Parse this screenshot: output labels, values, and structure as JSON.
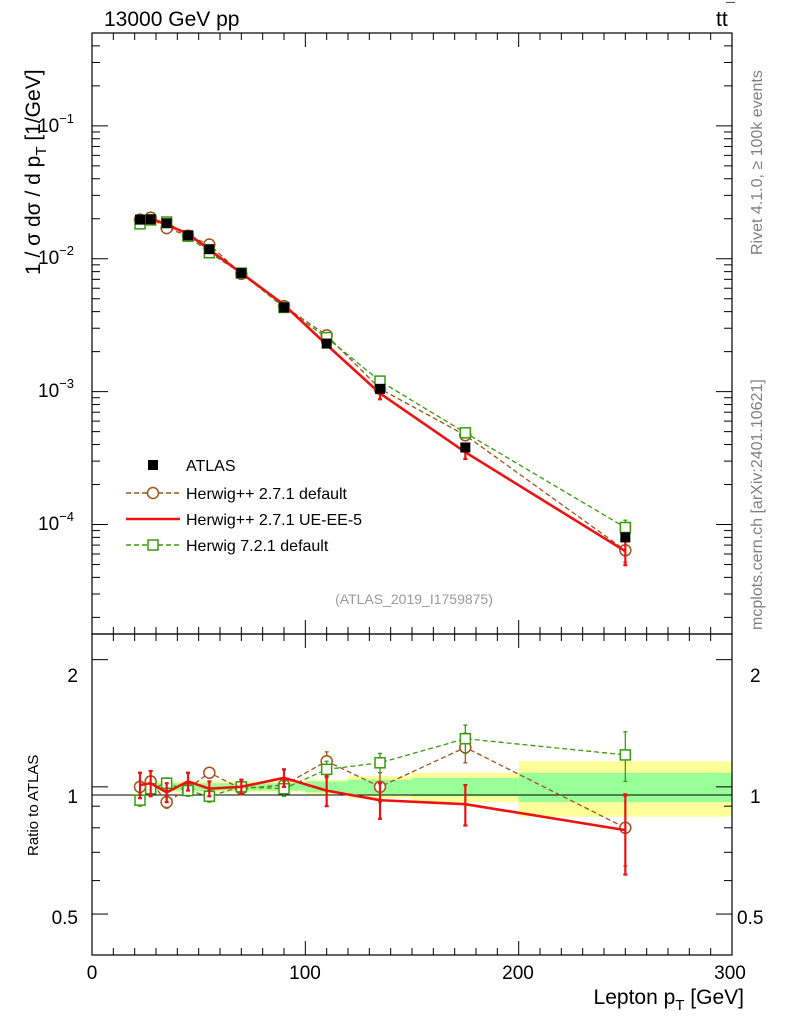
{
  "header": {
    "left": "13000 GeV pp",
    "right_base": "tt",
    "right_bar": "¯"
  },
  "side": {
    "rivet": "Rivet 4.1.0, ≥ 100k events",
    "mcplots": "mcplots.cern.ch [arXiv:2401.10621]"
  },
  "labels": {
    "ylabel_main_a": "1 / σ  dσ / d p",
    "ylabel_main_sub": "T",
    "ylabel_main_b": " [1/GeV]",
    "ylabel_ratio": "Ratio to ATLAS",
    "xlabel_a": "Lepton p",
    "xlabel_sub": "T",
    "xlabel_b": " [GeV]",
    "analysis_id": "(ATLAS_2019_I1759875)"
  },
  "ticks": {
    "x": [
      "0",
      "100",
      "200",
      "300"
    ],
    "main_y": [
      {
        "base": "10",
        "exp": "−1"
      },
      {
        "base": "10",
        "exp": "−2"
      },
      {
        "base": "10",
        "exp": "−3"
      },
      {
        "base": "10",
        "exp": "−4"
      }
    ],
    "ratio_y": [
      "2",
      "1",
      "0.5"
    ]
  },
  "colors": {
    "atlas": "#000000",
    "herwigpp_default": "#a0521a",
    "herwigpp_ueee5": "#ee1111",
    "herwig7": "#3a9a10",
    "band_inner": "#99ff99",
    "band_outer": "#ffff99"
  },
  "chart_data": {
    "type": "scatter",
    "x_edges": [
      20,
      25,
      30,
      40,
      50,
      60,
      80,
      100,
      120,
      150,
      200,
      300
    ],
    "x": [
      22.5,
      27.5,
      35,
      45,
      55,
      70,
      90,
      110,
      135,
      175,
      250
    ],
    "xlim": [
      0,
      300
    ],
    "xlabel": "Lepton pT [GeV]",
    "main": {
      "ylabel": "1 / σ dσ / d pT [1/GeV]",
      "yscale": "log",
      "ylim": [
        1.5e-05,
        0.5
      ]
    },
    "ratio": {
      "ylabel": "Ratio to ATLAS",
      "yscale": "log",
      "ylim": [
        0.4,
        2.3
      ],
      "band_inner": [
        0.02,
        0.02,
        0.02,
        0.02,
        0.02,
        0.02,
        0.02,
        0.03,
        0.04,
        0.05,
        0.08
      ],
      "band_outer": [
        0.03,
        0.03,
        0.03,
        0.03,
        0.03,
        0.03,
        0.03,
        0.04,
        0.06,
        0.08,
        0.15
      ]
    },
    "series": [
      {
        "name": "ATLAS",
        "values": [
          0.0197,
          0.0198,
          0.0185,
          0.015,
          0.0118,
          0.0078,
          0.0043,
          0.0023,
          0.00105,
          0.00038,
          8e-05
        ]
      },
      {
        "name": "Herwig++ 2.7.1 default",
        "values": [
          0.0197,
          0.0204,
          0.017,
          0.0149,
          0.0128,
          0.0077,
          0.0044,
          0.00265,
          0.00105,
          0.00047,
          6.4e-05
        ],
        "ratio": [
          1.0,
          1.03,
          0.92,
          0.99,
          1.08,
          0.99,
          1.01,
          1.15,
          1.0,
          1.24,
          0.8
        ],
        "ratio_err": [
          0.03,
          0.03,
          0.03,
          0.03,
          0.03,
          0.03,
          0.04,
          0.06,
          0.08,
          0.1,
          0.15
        ]
      },
      {
        "name": "Herwig++ 2.7.1 UE-EE-5",
        "values": [
          0.0199,
          0.0202,
          0.018,
          0.0154,
          0.0117,
          0.0078,
          0.0045,
          0.00225,
          0.00097,
          0.00035,
          6.3e-05
        ],
        "ratio": [
          1.01,
          1.02,
          0.97,
          1.03,
          0.99,
          1.0,
          1.05,
          0.98,
          0.93,
          0.91,
          0.79
        ],
        "ratio_err": [
          0.07,
          0.07,
          0.05,
          0.05,
          0.04,
          0.04,
          0.05,
          0.08,
          0.09,
          0.1,
          0.17
        ]
      },
      {
        "name": "Herwig 7.2.1 default",
        "values": [
          0.0183,
          0.0196,
          0.0189,
          0.0148,
          0.0111,
          0.0078,
          0.0043,
          0.00255,
          0.0012,
          0.00049,
          9.5e-05
        ],
        "ratio": [
          0.93,
          0.99,
          1.02,
          0.98,
          0.95,
          1.0,
          0.99,
          1.1,
          1.14,
          1.3,
          1.19
        ],
        "ratio_err": [
          0.03,
          0.03,
          0.03,
          0.03,
          0.03,
          0.03,
          0.04,
          0.05,
          0.06,
          0.1,
          0.16
        ]
      }
    ]
  }
}
